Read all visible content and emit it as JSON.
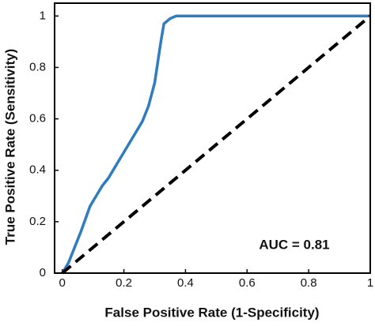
{
  "chart_data": {
    "type": "line",
    "x_label": "False Positive Rate (1-Specificity)",
    "y_label": "True Positive Rate (Sensitivity)",
    "annotation": "AUC = 0.81",
    "series": [
      {
        "color": "#2f7dbf",
        "x": [
          0,
          0.02,
          0.04,
          0.06,
          0.075,
          0.09,
          0.11,
          0.13,
          0.15,
          0.17,
          0.2,
          0.23,
          0.26,
          0.28,
          0.3,
          0.31,
          0.32,
          0.33,
          0.35,
          0.37,
          1
        ],
        "values": [
          0,
          0.04,
          0.1,
          0.16,
          0.21,
          0.26,
          0.3,
          0.34,
          0.37,
          0.41,
          0.47,
          0.53,
          0.59,
          0.65,
          0.74,
          0.82,
          0.9,
          0.97,
          0.99,
          1,
          1
        ]
      }
    ],
    "chance_line": {
      "color": "#000000",
      "x": [
        0,
        1
      ],
      "values": [
        0,
        1
      ]
    },
    "xlim": [
      -0.025,
      1
    ],
    "ylim": [
      0,
      1.05
    ],
    "xticks": [
      0,
      0.2,
      0.4,
      0.6,
      0.8,
      1
    ],
    "yticks": [
      0,
      0.2,
      0.4,
      0.6,
      0.8,
      1
    ],
    "grid": false
  }
}
